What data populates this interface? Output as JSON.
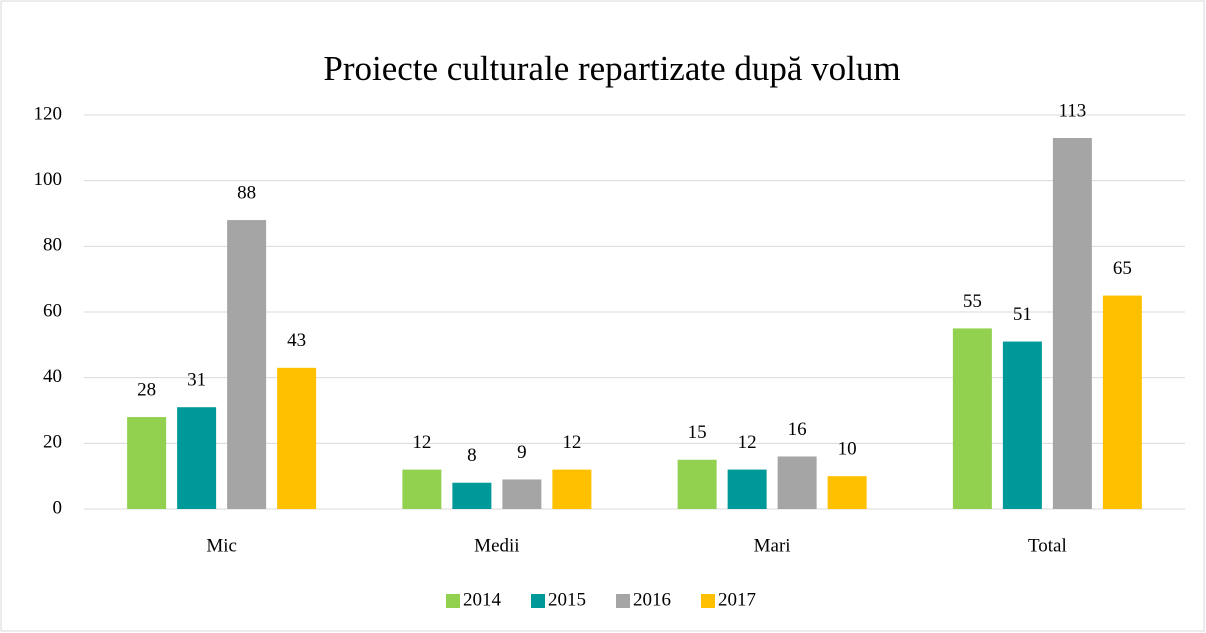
{
  "chart_data": {
    "type": "bar",
    "title": "Proiecte culturale repartizate după volum",
    "categories": [
      "Mic",
      "Medii",
      "Mari",
      "Total"
    ],
    "series": [
      {
        "name": "2014",
        "color": "#92d050",
        "values": [
          28,
          12,
          15,
          55
        ]
      },
      {
        "name": "2015",
        "color": "#009999",
        "values": [
          31,
          8,
          12,
          51
        ]
      },
      {
        "name": "2016",
        "color": "#a5a5a5",
        "values": [
          88,
          9,
          16,
          113
        ]
      },
      {
        "name": "2017",
        "color": "#ffc000",
        "values": [
          43,
          12,
          10,
          65
        ]
      }
    ],
    "ylim": [
      0,
      120
    ],
    "yticks": [
      0,
      20,
      40,
      60,
      80,
      100,
      120
    ],
    "grid": true,
    "legend": "bottom"
  }
}
